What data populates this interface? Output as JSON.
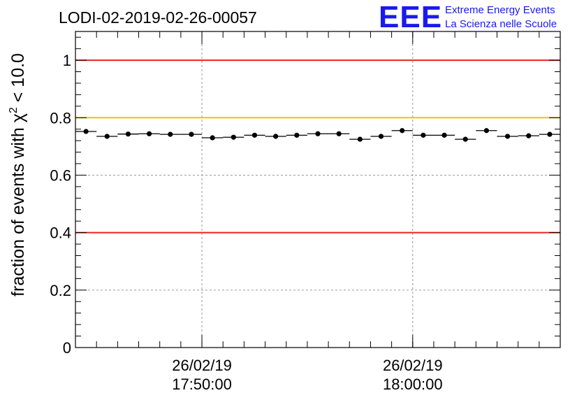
{
  "chart_data": {
    "type": "scatter",
    "title": "LODI-02-2019-02-26-00057",
    "ylabel_prefix": "fraction of events with ",
    "ylabel_symbol": "χ",
    "ylabel_superscript": "2",
    "ylabel_suffix": " < 10.0",
    "ylim": [
      0,
      1.1
    ],
    "yticks": [
      0,
      0.2,
      0.4,
      0.6,
      0.8,
      1
    ],
    "ytick_labels": [
      "0",
      "0.2",
      "0.4",
      "0.6",
      "0.8",
      "1"
    ],
    "xlim": [
      0,
      23
    ],
    "xticks": [
      {
        "value": 6,
        "line1": "26/02/19",
        "line2": "17:50:00"
      },
      {
        "value": 16,
        "line1": "26/02/19",
        "line2": "18:00:00"
      }
    ],
    "x_minor_step": 1,
    "grid": true,
    "reference_lines": [
      {
        "name": "upper-limit",
        "value": 1.0,
        "color": "#e8251f"
      },
      {
        "name": "warning-level",
        "value": 0.8,
        "color": "#f5c000"
      },
      {
        "name": "lower-limit",
        "value": 0.4,
        "color": "#e8251f"
      }
    ],
    "series": [
      {
        "name": "fraction",
        "x": [
          0.5,
          1.5,
          2.5,
          3.5,
          4.5,
          5.5,
          6.5,
          7.5,
          8.5,
          9.5,
          10.5,
          11.5,
          12.5,
          13.5,
          14.5,
          15.5,
          16.5,
          17.5,
          18.5,
          19.5,
          20.5,
          21.5,
          22.5
        ],
        "y": [
          0.752,
          0.735,
          0.743,
          0.744,
          0.742,
          0.742,
          0.73,
          0.732,
          0.739,
          0.735,
          0.739,
          0.744,
          0.744,
          0.725,
          0.735,
          0.755,
          0.739,
          0.739,
          0.725,
          0.755,
          0.735,
          0.737,
          0.742
        ]
      }
    ]
  },
  "logo": {
    "text": "EEE",
    "line1": "Extreme Energy Events",
    "line2": "La Scienza nelle Scuole",
    "color": "#1a1aee"
  }
}
